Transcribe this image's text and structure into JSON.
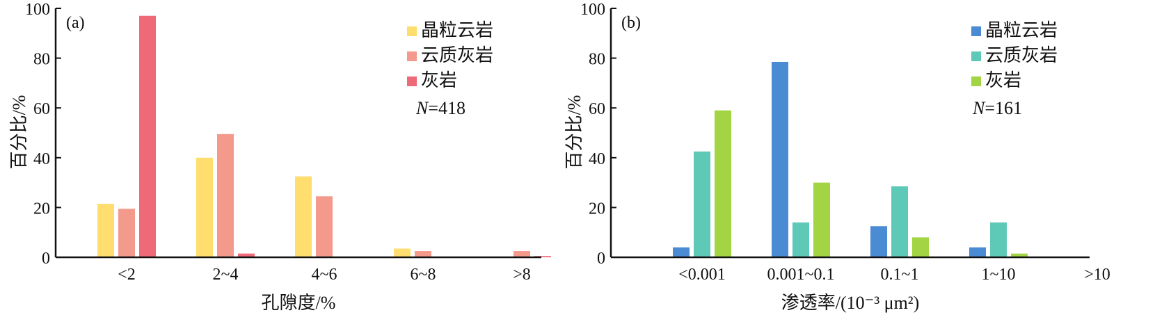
{
  "chart_data": [
    {
      "panel_label": "(a)",
      "type": "bar",
      "categories": [
        "<2",
        "2~4",
        "4~6",
        "6~8",
        ">8"
      ],
      "series": [
        {
          "name": "晶粒云岩",
          "color": "#FFDD6E",
          "values": [
            21.5,
            40.0,
            32.5,
            3.5,
            0.0
          ]
        },
        {
          "name": "云质灰岩",
          "color": "#F39A8C",
          "values": [
            19.5,
            49.5,
            24.5,
            2.5,
            2.5
          ]
        },
        {
          "name": "灰岩",
          "color": "#EE6A78",
          "values": [
            97.0,
            1.5,
            0.0,
            0.0,
            0.5
          ]
        }
      ],
      "xlabel": "孔隙度/%",
      "ylabel": "百分比/%",
      "ylim": [
        0,
        100
      ],
      "yticks": [
        0,
        20,
        40,
        60,
        80,
        100
      ],
      "legend_position": "top-right",
      "n_label": "N=418",
      "grid": false
    },
    {
      "panel_label": "(b)",
      "type": "bar",
      "categories": [
        "<0.001",
        "0.001~0.1",
        "0.1~1",
        "1~10",
        ">10"
      ],
      "series": [
        {
          "name": "晶粒云岩",
          "color": "#4A8BD4",
          "values": [
            4.0,
            78.5,
            12.5,
            4.0,
            0.0
          ]
        },
        {
          "name": "云质灰岩",
          "color": "#5FC9B8",
          "values": [
            42.5,
            14.0,
            28.5,
            14.0,
            0.0
          ]
        },
        {
          "name": "灰岩",
          "color": "#A2D444",
          "values": [
            59.0,
            30.0,
            8.0,
            1.5,
            0.0
          ]
        }
      ],
      "xlabel": "渗透率/(10⁻³ μm²)",
      "ylabel": "百分比/%",
      "ylim": [
        0,
        100
      ],
      "yticks": [
        0,
        20,
        40,
        60,
        80,
        100
      ],
      "legend_position": "top-right",
      "n_label": "N=161",
      "grid": false
    }
  ]
}
